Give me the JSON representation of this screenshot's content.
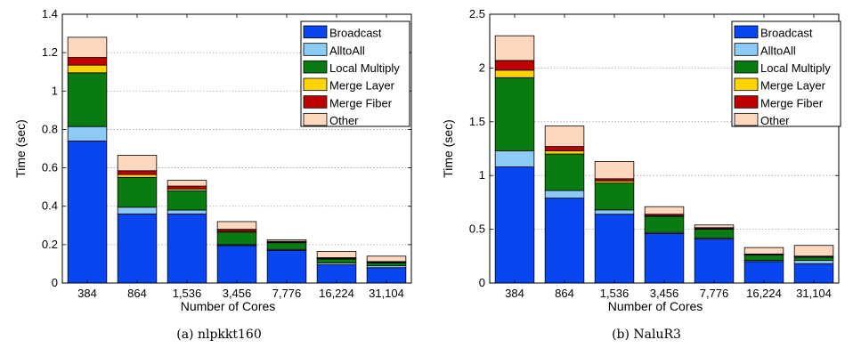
{
  "chart_data": [
    {
      "type": "bar",
      "stacked": true,
      "caption": "(a) nlpkkt160",
      "xlabel": "Number of Cores",
      "ylabel": "Time (sec)",
      "ylim": [
        0,
        1.4
      ],
      "yticks": [
        0,
        0.2,
        0.4,
        0.6,
        0.8,
        1,
        1.2,
        1.4
      ],
      "grid": "y-dotted",
      "legend_position": "top-right",
      "categories": [
        "384",
        "864",
        "1,536",
        "3,456",
        "7,776",
        "16,224",
        "31,104"
      ],
      "series": [
        {
          "name": "Broadcast",
          "color": "#0a46f0",
          "values": [
            0.74,
            0.36,
            0.36,
            0.195,
            0.17,
            0.095,
            0.08
          ]
        },
        {
          "name": "AlltoAll",
          "color": "#8ccbf6",
          "values": [
            0.075,
            0.035,
            0.02,
            0.005,
            0.005,
            0.01,
            0.01
          ]
        },
        {
          "name": "Local Multiply",
          "color": "#0a7a12",
          "values": [
            0.28,
            0.155,
            0.1,
            0.065,
            0.035,
            0.02,
            0.015
          ]
        },
        {
          "name": "Merge Layer",
          "color": "#ffd400",
          "values": [
            0.04,
            0.015,
            0.01,
            0.005,
            0.003,
            0.003,
            0.003
          ]
        },
        {
          "name": "Merge Fiber",
          "color": "#c00000",
          "values": [
            0.04,
            0.02,
            0.015,
            0.01,
            0.004,
            0.004,
            0.004
          ]
        },
        {
          "name": "Other",
          "color": "#fdd8bf",
          "values": [
            0.105,
            0.08,
            0.03,
            0.04,
            0.008,
            0.033,
            0.028
          ]
        }
      ]
    },
    {
      "type": "bar",
      "stacked": true,
      "caption": "(b) NaluR3",
      "xlabel": "Number of Cores",
      "ylabel": "Time (sec)",
      "ylim": [
        0,
        2.5
      ],
      "yticks": [
        0,
        0.5,
        1,
        1.5,
        2,
        2.5
      ],
      "grid": "y-dotted",
      "legend_position": "top-right",
      "categories": [
        "384",
        "864",
        "1,536",
        "3,456",
        "7,776",
        "16,224",
        "31,104"
      ],
      "series": [
        {
          "name": "Broadcast",
          "color": "#0a46f0",
          "values": [
            1.08,
            0.79,
            0.64,
            0.46,
            0.41,
            0.2,
            0.18
          ]
        },
        {
          "name": "AlltoAll",
          "color": "#8ccbf6",
          "values": [
            0.15,
            0.07,
            0.04,
            0.01,
            0.01,
            0.01,
            0.03
          ]
        },
        {
          "name": "Local Multiply",
          "color": "#0a7a12",
          "values": [
            0.68,
            0.34,
            0.25,
            0.15,
            0.08,
            0.05,
            0.03
          ]
        },
        {
          "name": "Merge Layer",
          "color": "#ffd400",
          "values": [
            0.07,
            0.03,
            0.02,
            0.005,
            0.005,
            0.005,
            0.005
          ]
        },
        {
          "name": "Merge Fiber",
          "color": "#c00000",
          "values": [
            0.09,
            0.04,
            0.02,
            0.015,
            0.01,
            0.005,
            0.005
          ]
        },
        {
          "name": "Other",
          "color": "#fdd8bf",
          "values": [
            0.23,
            0.19,
            0.16,
            0.07,
            0.025,
            0.06,
            0.1
          ]
        }
      ]
    }
  ]
}
